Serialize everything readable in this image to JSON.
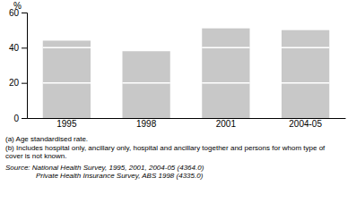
{
  "chart_data": {
    "type": "bar",
    "stacked": true,
    "categories": [
      "1995",
      "1998",
      "2001",
      "2004-05"
    ],
    "series": [
      {
        "color": "#c8c8c8",
        "values": [
          20,
          20,
          20,
          20
        ]
      },
      {
        "color": "#c8c8c8",
        "values": [
          20,
          18,
          20,
          20
        ]
      },
      {
        "color": "#c8c8c8",
        "values": [
          4,
          0,
          11,
          10
        ]
      }
    ],
    "ylabel": "%",
    "ylim": [
      0,
      60
    ],
    "yticks": [
      0,
      20,
      40,
      60
    ],
    "grid": false,
    "annotations": [
      "(a) Age standardised rate.",
      "(b) Includes hospital only, ancillary only, hospital and ancillary together and persons for whom type of cover is not known.",
      "Source: National Health Survey, 1995, 2001, 2004-05 (4364.0)",
      "Private Health Insurance Survey, ABS 1998 (4335.0)"
    ]
  }
}
